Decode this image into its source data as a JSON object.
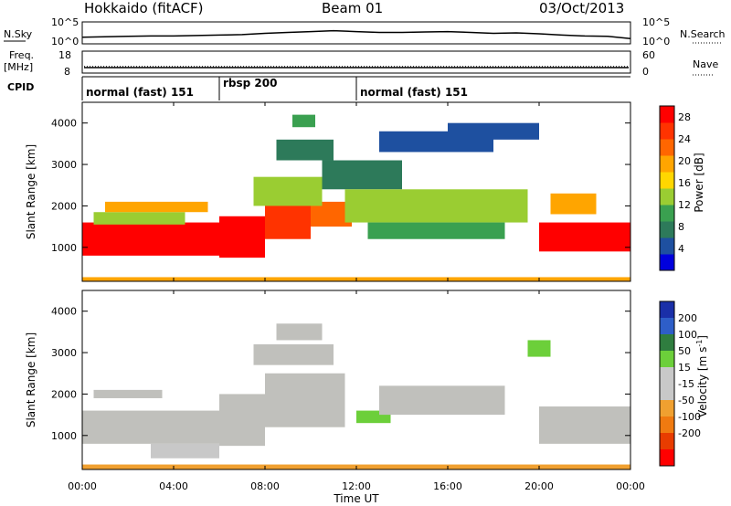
{
  "header": {
    "station": "Hokkaido (fitACF)",
    "beam": "Beam 01",
    "date": "03/Oct/2013"
  },
  "colors": {
    "power_scale": [
      "#0000dd",
      "#1e50a0",
      "#2d7a5a",
      "#3aa050",
      "#9acd32",
      "#ffd700",
      "#ffa500",
      "#ff6600",
      "#ff3300",
      "#ff0000"
    ],
    "velocity_scale": [
      "#1a2fa8",
      "#2e5ec8",
      "#2f7d3f",
      "#6ccf3a",
      "#c8c8c8",
      "#c8c8c8",
      "#f0a030",
      "#f07a10",
      "#e83c00",
      "#ff0000"
    ],
    "ground_scatter": "#c0c0bc"
  },
  "chart_data": [
    {
      "type": "line",
      "panel": "nsky_nsearch",
      "ylabel_left": "N.Sky",
      "ylabel_right": "N.Search",
      "left_ticks": [
        "10^5",
        "10^0"
      ],
      "right_ticks": [
        "10^5",
        "10^0"
      ],
      "x": [
        0,
        1,
        2,
        3,
        4,
        5,
        6,
        7,
        8,
        9,
        10,
        11,
        12,
        13,
        14,
        15,
        16,
        17,
        18,
        19,
        20,
        21,
        22,
        23,
        24
      ],
      "values": [
        1.5,
        1.6,
        1.7,
        1.8,
        1.8,
        1.9,
        2.0,
        2.1,
        2.4,
        2.6,
        2.8,
        3.0,
        2.8,
        2.6,
        2.6,
        2.7,
        2.8,
        2.6,
        2.4,
        2.5,
        2.3,
        2.0,
        1.8,
        1.7,
        1.2
      ]
    },
    {
      "type": "line",
      "panel": "freq_nave",
      "ylabel_left": "Freq.",
      "ylabel_left_units": "[MHz]",
      "ylabel_right": "Nave",
      "left_ticks": [
        "18",
        "8"
      ],
      "right_ticks": [
        "60",
        "0"
      ],
      "freq_mhz": 10.5,
      "nave": 18
    },
    {
      "type": "table",
      "panel": "cpid",
      "label": "CPID",
      "segments": [
        {
          "name": "normal (fast) 151",
          "start": 0,
          "end": 6
        },
        {
          "name": "rbsp 200",
          "start": 6,
          "end": 12
        },
        {
          "name": "normal (fast) 151",
          "start": 12,
          "end": 24
        }
      ]
    },
    {
      "type": "heatmap",
      "panel": "power",
      "ylabel": "Slant Range [km]",
      "y_ticks": [
        1000,
        2000,
        3000,
        4000
      ],
      "ylim": [
        180,
        4500
      ],
      "xlim": [
        0,
        24
      ],
      "colorbar_label": "Power [dB]",
      "colorbar_ticks": [
        4,
        8,
        12,
        16,
        20,
        24,
        28
      ],
      "regions": [
        {
          "t0": 0.0,
          "t1": 6.0,
          "r0": 800,
          "r1": 1600,
          "v": 28
        },
        {
          "t0": 6.0,
          "t1": 8.0,
          "r0": 750,
          "r1": 1750,
          "v": 27
        },
        {
          "t0": 8.0,
          "t1": 10.0,
          "r0": 1200,
          "r1": 2100,
          "v": 25
        },
        {
          "t0": 10.0,
          "t1": 11.8,
          "r0": 1500,
          "r1": 2100,
          "v": 22
        },
        {
          "t0": 0.5,
          "t1": 4.5,
          "r0": 1550,
          "r1": 1850,
          "v": 14
        },
        {
          "t0": 1.0,
          "t1": 5.5,
          "r0": 1850,
          "r1": 2100,
          "v": 20
        },
        {
          "t0": 7.5,
          "t1": 10.5,
          "r0": 2000,
          "r1": 2700,
          "v": 12
        },
        {
          "t0": 8.5,
          "t1": 11.0,
          "r0": 3100,
          "r1": 3600,
          "v": 8
        },
        {
          "t0": 9.2,
          "t1": 10.2,
          "r0": 3900,
          "r1": 4200,
          "v": 10
        },
        {
          "t0": 10.5,
          "t1": 14.0,
          "r0": 2400,
          "r1": 3100,
          "v": 6
        },
        {
          "t0": 11.5,
          "t1": 19.5,
          "r0": 1600,
          "r1": 2400,
          "v": 13
        },
        {
          "t0": 12.5,
          "t1": 18.5,
          "r0": 1200,
          "r1": 1600,
          "v": 9
        },
        {
          "t0": 13.0,
          "t1": 18.0,
          "r0": 3300,
          "r1": 3800,
          "v": 5
        },
        {
          "t0": 16.0,
          "t1": 20.0,
          "r0": 3600,
          "r1": 4000,
          "v": 5
        },
        {
          "t0": 20.0,
          "t1": 24.0,
          "r0": 900,
          "r1": 1600,
          "v": 27
        },
        {
          "t0": 20.5,
          "t1": 22.5,
          "r0": 1800,
          "r1": 2300,
          "v": 20
        },
        {
          "t0": 0.0,
          "t1": 24.0,
          "r0": 180,
          "r1": 280,
          "v": 18
        }
      ]
    },
    {
      "type": "heatmap",
      "panel": "velocity",
      "ylabel": "Slant Range [km]",
      "y_ticks": [
        1000,
        2000,
        3000,
        4000
      ],
      "ylim": [
        180,
        4500
      ],
      "xlim": [
        0,
        24
      ],
      "xlabel": "Time UT",
      "x_ticks": [
        "00:00",
        "04:00",
        "08:00",
        "12:00",
        "16:00",
        "20:00",
        "00:00"
      ],
      "colorbar_label": "Velocity [m s^-1]",
      "colorbar_ticks": [
        200,
        100,
        50,
        15,
        -15,
        -50,
        -100,
        -200
      ],
      "regions": [
        {
          "t0": 0.0,
          "t1": 6.0,
          "r0": 800,
          "r1": 1600,
          "v": 0
        },
        {
          "t0": 6.0,
          "t1": 8.0,
          "r0": 750,
          "r1": 2000,
          "v": 0
        },
        {
          "t0": 8.0,
          "t1": 11.5,
          "r0": 1200,
          "r1": 2500,
          "v": 0
        },
        {
          "t0": 7.5,
          "t1": 11.0,
          "r0": 2700,
          "r1": 3200,
          "v": 0
        },
        {
          "t0": 8.5,
          "t1": 10.5,
          "r0": 3300,
          "r1": 3700,
          "v": 0
        },
        {
          "t0": 12.0,
          "t1": 13.5,
          "r0": 1300,
          "r1": 1600,
          "v": 40
        },
        {
          "t0": 13.0,
          "t1": 18.5,
          "r0": 1500,
          "r1": 2200,
          "v": 0
        },
        {
          "t0": 20.0,
          "t1": 24.0,
          "r0": 800,
          "r1": 1700,
          "v": 0
        },
        {
          "t0": 19.5,
          "t1": 20.5,
          "r0": 2900,
          "r1": 3300,
          "v": 40
        },
        {
          "t0": 0.5,
          "t1": 3.5,
          "r0": 1900,
          "r1": 2100,
          "v": 0
        },
        {
          "t0": 3.0,
          "t1": 6.0,
          "r0": 450,
          "r1": 800,
          "v": -40
        },
        {
          "t0": 0.0,
          "t1": 24.0,
          "r0": 180,
          "r1": 300,
          "v": -60
        }
      ]
    }
  ],
  "labels": {
    "power_y": "Slant Range [km]",
    "velocity_y": "Slant Range [km]",
    "power_cb": "Power [dB]",
    "velocity_cb": "Velocity [m s",
    "velocity_cb_sup": "-1",
    "velocity_cb_end": "]",
    "x_title": "Time UT"
  }
}
